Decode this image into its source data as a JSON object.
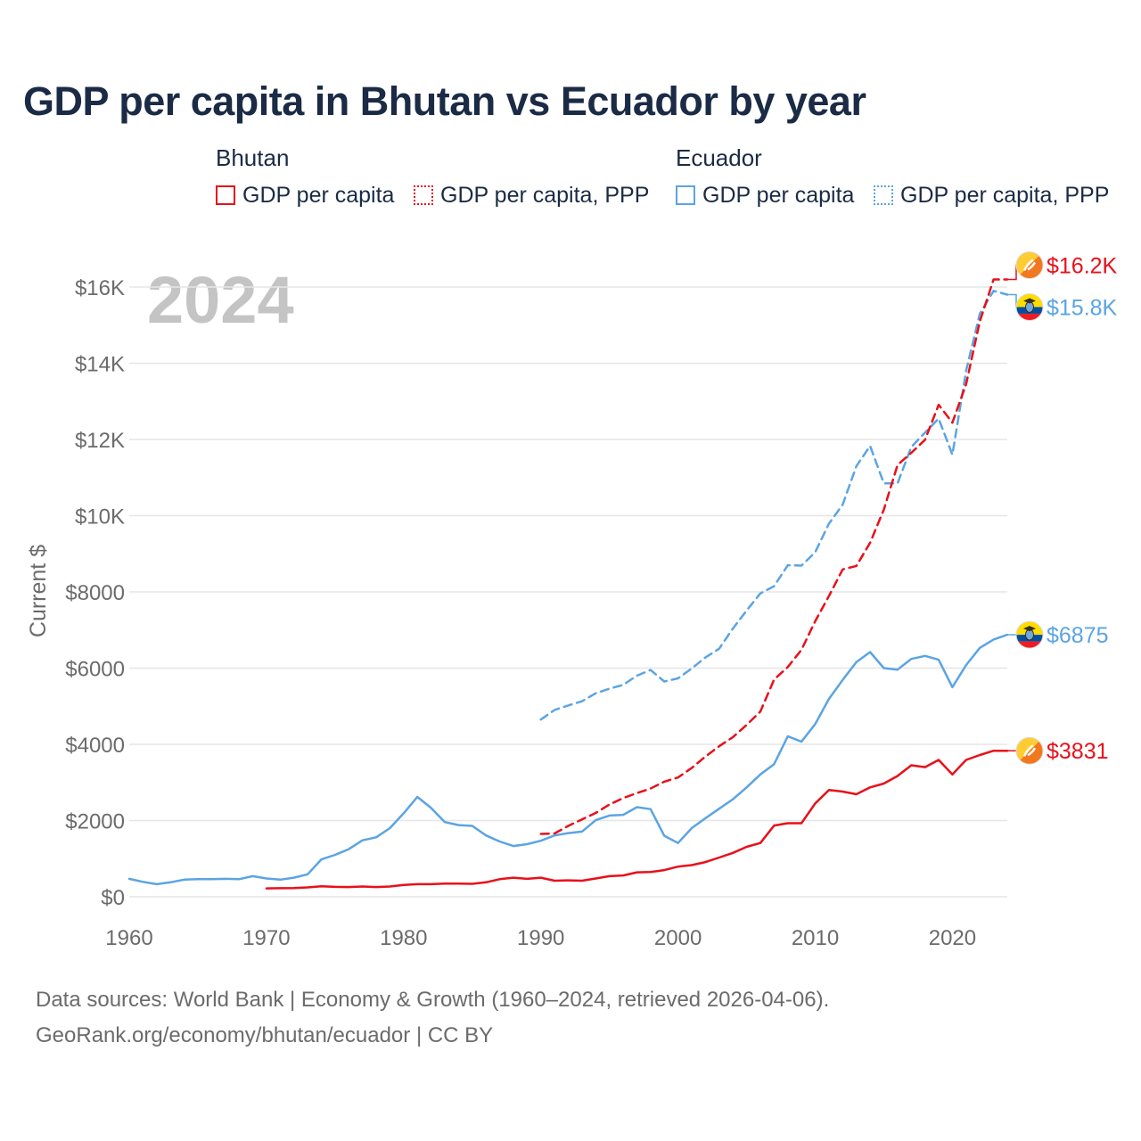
{
  "title": "GDP per capita in Bhutan vs Ecuador by year",
  "legend": {
    "groups": [
      {
        "country": "Bhutan",
        "items": [
          "GDP per capita",
          "GDP per capita, PPP"
        ]
      },
      {
        "country": "Ecuador",
        "items": [
          "GDP per capita",
          "GDP per capita, PPP"
        ]
      }
    ]
  },
  "colors": {
    "bhutan": "#e8101a",
    "ecuador": "#5ba4e3",
    "grid": "#e6e6e6",
    "year_watermark": "#c4c4c4"
  },
  "footer": {
    "line1": "Data sources: World Bank | Economy & Growth (1960–2024, retrieved 2026-04-06).",
    "line2": "GeoRank.org/economy/bhutan/ecuador | CC BY"
  },
  "chart_data": {
    "type": "line",
    "title": "GDP per capita in Bhutan vs Ecuador by year",
    "year_label": "2024",
    "xlabel": "",
    "ylabel": "Current $",
    "xlim": [
      1960,
      2024
    ],
    "ylim": [
      0,
      16800
    ],
    "x_ticks": [
      1960,
      1970,
      1980,
      1990,
      2000,
      2010,
      2020
    ],
    "x_tick_labels": [
      "1960",
      "1970",
      "1980",
      "1990",
      "2000",
      "2010",
      "2020"
    ],
    "y_ticks": [
      0,
      2000,
      4000,
      6000,
      8000,
      10000,
      12000,
      14000,
      16000
    ],
    "y_tick_labels": [
      "$0",
      "$2000",
      "$4000",
      "$6000",
      "$8000",
      "$10K",
      "$12K",
      "$14K",
      "$16K"
    ],
    "grid": true,
    "series": [
      {
        "name": "Bhutan GDP per capita",
        "country": "Bhutan",
        "style": "solid",
        "color": "#e8101a",
        "end_label": "$3831",
        "flag": "bhutan",
        "x": [
          1970,
          1971,
          1972,
          1973,
          1974,
          1975,
          1976,
          1977,
          1978,
          1979,
          1980,
          1981,
          1982,
          1983,
          1984,
          1985,
          1986,
          1987,
          1988,
          1989,
          1990,
          1991,
          1992,
          1993,
          1994,
          1995,
          1996,
          1997,
          1998,
          1999,
          2000,
          2001,
          2002,
          2003,
          2004,
          2005,
          2006,
          2007,
          2008,
          2009,
          2010,
          2011,
          2012,
          2013,
          2014,
          2015,
          2016,
          2017,
          2018,
          2019,
          2020,
          2021,
          2022,
          2023,
          2024
        ],
        "values": [
          220,
          225,
          230,
          245,
          275,
          260,
          255,
          270,
          255,
          270,
          310,
          330,
          330,
          345,
          345,
          340,
          380,
          460,
          500,
          470,
          500,
          420,
          430,
          420,
          480,
          540,
          560,
          640,
          650,
          700,
          790,
          830,
          910,
          1030,
          1150,
          1310,
          1410,
          1870,
          1930,
          1930,
          2450,
          2800,
          2760,
          2690,
          2870,
          2970,
          3170,
          3450,
          3400,
          3590,
          3210,
          3590,
          3720,
          3831,
          3831
        ]
      },
      {
        "name": "Bhutan GDP per capita, PPP",
        "country": "Bhutan",
        "style": "dashed",
        "color": "#e8101a",
        "end_label": "$16.2K",
        "flag": "bhutan",
        "x": [
          1990,
          1991,
          1992,
          1993,
          1994,
          1995,
          1996,
          1997,
          1998,
          1999,
          2000,
          2001,
          2002,
          2003,
          2004,
          2005,
          2006,
          2007,
          2008,
          2009,
          2010,
          2011,
          2012,
          2013,
          2014,
          2015,
          2016,
          2017,
          2018,
          2019,
          2020,
          2021,
          2022,
          2023,
          2024
        ],
        "values": [
          1650,
          1660,
          1860,
          2030,
          2200,
          2420,
          2590,
          2720,
          2840,
          3020,
          3130,
          3380,
          3680,
          3950,
          4190,
          4510,
          4860,
          5700,
          6030,
          6480,
          7230,
          7890,
          8590,
          8680,
          9290,
          10160,
          11330,
          11650,
          11990,
          12910,
          12440,
          13450,
          15100,
          16200,
          16200
        ]
      },
      {
        "name": "Ecuador GDP per capita",
        "country": "Ecuador",
        "style": "solid",
        "color": "#5ba4e3",
        "end_label": "$6875",
        "flag": "ecuador",
        "x": [
          1960,
          1961,
          1962,
          1963,
          1964,
          1965,
          1966,
          1967,
          1968,
          1969,
          1970,
          1971,
          1972,
          1973,
          1974,
          1975,
          1976,
          1977,
          1978,
          1979,
          1980,
          1981,
          1982,
          1983,
          1984,
          1985,
          1986,
          1987,
          1988,
          1989,
          1990,
          1991,
          1992,
          1993,
          1994,
          1995,
          1996,
          1997,
          1998,
          1999,
          2000,
          2001,
          2002,
          2003,
          2004,
          2005,
          2006,
          2007,
          2008,
          2009,
          2010,
          2011,
          2012,
          2013,
          2014,
          2015,
          2016,
          2017,
          2018,
          2019,
          2020,
          2021,
          2022,
          2023,
          2024
        ],
        "values": [
          470,
          390,
          330,
          380,
          450,
          460,
          460,
          470,
          460,
          540,
          480,
          450,
          500,
          590,
          980,
          1100,
          1250,
          1480,
          1560,
          1800,
          2190,
          2620,
          2330,
          1960,
          1880,
          1860,
          1610,
          1450,
          1330,
          1380,
          1470,
          1610,
          1670,
          1710,
          2010,
          2130,
          2150,
          2350,
          2300,
          1600,
          1410,
          1800,
          2060,
          2310,
          2560,
          2870,
          3210,
          3480,
          4210,
          4070,
          4530,
          5190,
          5690,
          6160,
          6420,
          6000,
          5960,
          6240,
          6320,
          6220,
          5500,
          6080,
          6530,
          6750,
          6875
        ]
      },
      {
        "name": "Ecuador GDP per capita, PPP",
        "country": "Ecuador",
        "style": "dashed",
        "color": "#5ba4e3",
        "end_label": "$15.8K",
        "flag": "ecuador",
        "x": [
          1990,
          1991,
          1992,
          1993,
          1994,
          1995,
          1996,
          1997,
          1998,
          1999,
          2000,
          2001,
          2002,
          2003,
          2004,
          2005,
          2006,
          2007,
          2008,
          2009,
          2010,
          2011,
          2012,
          2013,
          2014,
          2015,
          2016,
          2017,
          2018,
          2019,
          2020,
          2021,
          2022,
          2023,
          2024
        ],
        "values": [
          4650,
          4900,
          5020,
          5130,
          5340,
          5460,
          5560,
          5800,
          5950,
          5650,
          5730,
          5990,
          6280,
          6510,
          7040,
          7510,
          7960,
          8150,
          8700,
          8690,
          9040,
          9790,
          10290,
          11300,
          11830,
          10850,
          10850,
          11800,
          12180,
          12550,
          11600,
          13800,
          15300,
          15900,
          15800
        ]
      }
    ]
  }
}
